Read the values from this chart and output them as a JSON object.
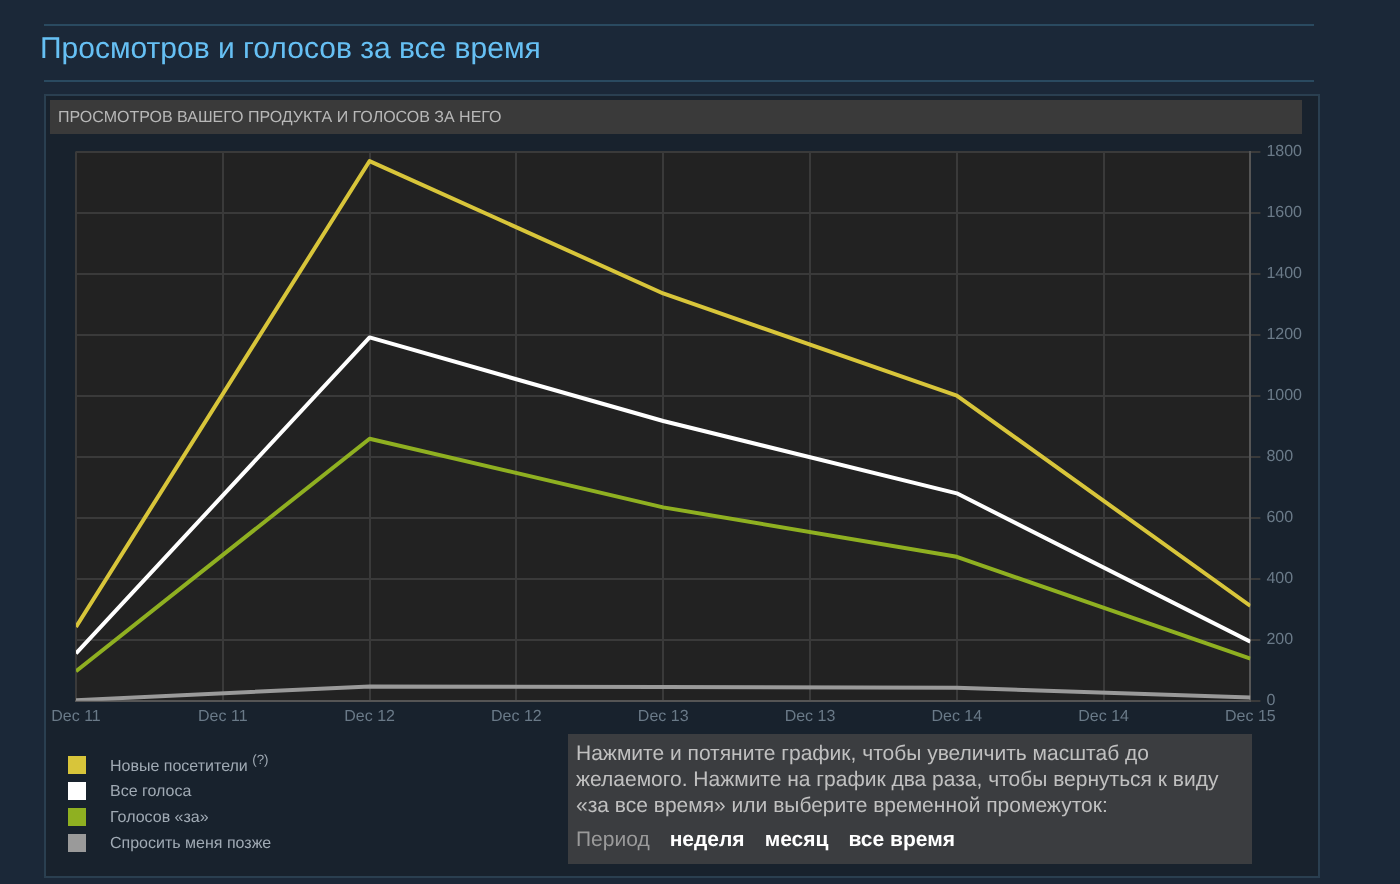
{
  "chart_data": {
    "type": "line",
    "title": "Просмотров и голосов за все время",
    "subtitle": "ПРОСМОТРОВ ВАШЕГО ПРОДУКТА И ГОЛОСОВ ЗА НЕГО",
    "x": [
      "--12-11",
      "--12-12",
      "--12-13",
      "--12-14",
      "--12-15"
    ],
    "series": [
      {
        "name": "Новые посетители $^{(?)}$",
        "color": "#d8c53a",
        "values": [
          242,
          1769,
          1335,
          1000,
          311
        ]
      },
      {
        "name": "Все голоса",
        "color": "#ffffff",
        "values": [
          155,
          1191,
          917,
          680,
          194
        ]
      },
      {
        "name": "Голосов «за»",
        "color": "#8fb021",
        "values": [
          97,
          859,
          634,
          472,
          138
        ]
      },
      {
        "name": "Спросить меня позже",
        "color": "#9a9a9a",
        "values": [
          2,
          47,
          45,
          43,
          11
        ]
      }
    ],
    "xlim": [
      "--12-11",
      "--12-15"
    ],
    "xticks": [
      {
        "value": "--12-11",
        "label": "Dec 11"
      },
      {
        "value": "--12-11T12:00",
        "label": "Dec 11"
      },
      {
        "value": "--12-12",
        "label": "Dec 12"
      },
      {
        "value": "--12-12T12:00",
        "label": "Dec 12"
      },
      {
        "value": "--12-13",
        "label": "Dec 13"
      },
      {
        "value": "--12-13T12:00",
        "label": "Dec 13"
      },
      {
        "value": "--12-14",
        "label": "Dec 14"
      },
      {
        "value": "--12-14T12:00",
        "label": "Dec 14"
      },
      {
        "value": "--12-15",
        "label": "Dec 15"
      }
    ],
    "ylim": [
      0,
      1800
    ],
    "yticks": [
      0,
      200,
      400,
      600,
      800,
      1000,
      1200,
      1400,
      1600,
      1800
    ],
    "grid": true,
    "legend": "bottom left",
    "marker": "none",
    "line_style": "solid",
    "annotations": [
      "Нажмите и потяните график, чтобы увеличить масштаб до желаемого. Нажмите на график два раза, чтобы вернуться к виду «за все время» или выберите временной промежуток:",
      "Период",
      "неделя",
      "месяц",
      "все время"
    ]
  }
}
